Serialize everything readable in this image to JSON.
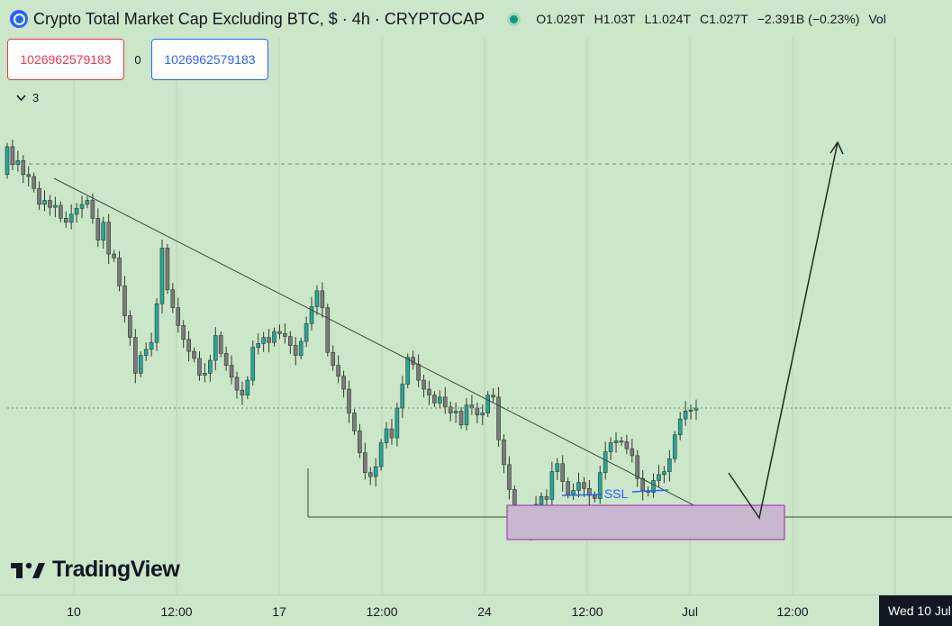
{
  "header": {
    "title": "Crypto Total Market Cap Excluding BTC, $ · 4h · CRYPTOCAP",
    "open_label": "O",
    "open_value": "1.029T",
    "high_label": "H",
    "high_value": "1.03T",
    "low_label": "L",
    "low_value": "1.024T",
    "close_label": "C",
    "close_value": "1.027T",
    "change": "−2.391B (−0.23%)",
    "vol_label": "Vol"
  },
  "trade": {
    "sell_price": "1026962579183",
    "spread": "0",
    "buy_price": "1026962579183"
  },
  "indicators": {
    "count": "3"
  },
  "annotations": {
    "ssl": "SSL"
  },
  "logo": {
    "text": "TradingView"
  },
  "time_axis": {
    "ticks": [
      "10",
      "12:00",
      "17",
      "12:00",
      "24",
      "12:00",
      "Jul",
      "12:00"
    ],
    "crosshair_label": "Wed 10 Jul"
  },
  "colors": {
    "background": "#cbe6c8",
    "up_candle": "#26a69a",
    "down_candle": "#7b7b7b",
    "zone_fill": "#c9b6cf",
    "zone_border": "#9c27b0",
    "ssl_line": "#2962ff"
  },
  "chart_data": {
    "type": "candlestick",
    "series_note": "",
    "closes": [
      1.29,
      1.272,
      1.276,
      1.262,
      1.26,
      1.248,
      1.232,
      1.236,
      1.229,
      1.231,
      1.218,
      1.214,
      1.222,
      1.228,
      1.232,
      1.236,
      1.218,
      1.196,
      1.214,
      1.182,
      1.178,
      1.15,
      1.12,
      1.098,
      1.062,
      1.08,
      1.086,
      1.093,
      1.132,
      1.188,
      1.146,
      1.128,
      1.11,
      1.096,
      1.084,
      1.077,
      1.06,
      1.062,
      1.075,
      1.1,
      1.082,
      1.07,
      1.058,
      1.045,
      1.04,
      1.055,
      1.088,
      1.092,
      1.098,
      1.093,
      1.104,
      1.102,
      1.099,
      1.09,
      1.08,
      1.094,
      1.112,
      1.129,
      1.145,
      1.128,
      1.083,
      1.07,
      1.059,
      1.046,
      1.022,
      1.004,
      0.982,
      0.962,
      0.958,
      0.968,
      0.992,
      1.006,
      0.997,
      1.027,
      1.051,
      1.078,
      1.071,
      1.055,
      1.046,
      1.04,
      1.032,
      1.038,
      1.028,
      1.022,
      1.024,
      1.01,
      1.03,
      1.027,
      1.02,
      1.022,
      1.04,
      1.038,
      0.995,
      0.97,
      0.945,
      0.917,
      0.903,
      0.902,
      0.908,
      0.93,
      0.938,
      0.935,
      0.963,
      0.971,
      0.953,
      0.94,
      0.944,
      0.952,
      0.946,
      0.939,
      0.936,
      0.962,
      0.983,
      0.992,
      0.994,
      0.993,
      0.986,
      0.979,
      0.956,
      0.944,
      0.942,
      0.954,
      0.96,
      0.963,
      0.976,
      1.0,
      1.016,
      1.024,
      1.025,
      1.027
    ]
  }
}
